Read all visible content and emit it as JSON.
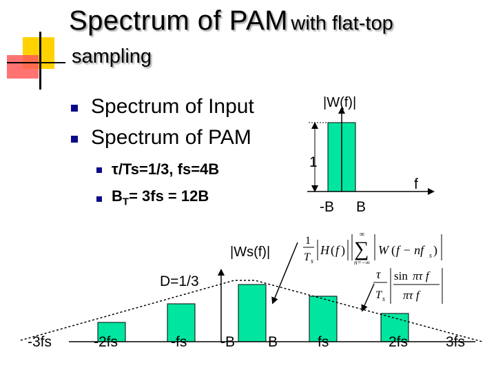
{
  "title": {
    "main": "Spectrum of PAM",
    "suffix": "with flat-top",
    "line2": "sampling"
  },
  "bullets": [
    {
      "text": "Spectrum of Input"
    },
    {
      "text": "Spectrum of PAM"
    }
  ],
  "sub_bullets": [
    {
      "text": "τ/Ts=1/3, fs=4B"
    },
    {
      "text_pre": "B",
      "sub": "T",
      "text_post": "= 3fs = 12B"
    }
  ],
  "input_spectrum": {
    "label": "|W(f)|",
    "height_label": "1",
    "neg_label": "-B",
    "pos_label": "B",
    "axis_label": "f"
  },
  "pam_spectrum": {
    "label": "|Ws(f)|",
    "duty_label": "D=1/3",
    "x_labels": [
      "-3fs",
      "-2fs",
      "-fs",
      "-B",
      "B",
      "fs",
      "2fs",
      "3fs"
    ]
  },
  "formulas": {
    "ws": "(1/Ts)|H(f)| |Σ W(f−nfs)|",
    "h": "(τ/Ts)|sin πτf / πτf|"
  },
  "colors": {
    "fill": "#00e6a0",
    "bullet": "#0b0b8a",
    "deco_yellow": "#ffd700",
    "deco_red": "#ff3b3b"
  }
}
